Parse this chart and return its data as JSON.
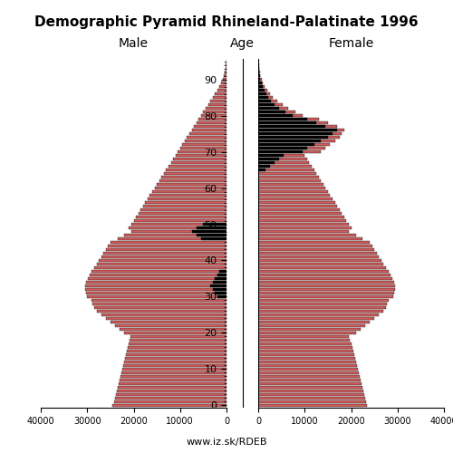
{
  "title": "Demographic Pyramid Rhineland-Palatinate 1996",
  "male_label": "Male",
  "female_label": "Female",
  "age_label": "Age",
  "url": "www.iz.sk/RDEB",
  "bar_color": "#cd5c5c",
  "black_color": "#000000",
  "xlim": 40000,
  "ages": [
    0,
    1,
    2,
    3,
    4,
    5,
    6,
    7,
    8,
    9,
    10,
    11,
    12,
    13,
    14,
    15,
    16,
    17,
    18,
    19,
    20,
    21,
    22,
    23,
    24,
    25,
    26,
    27,
    28,
    29,
    30,
    31,
    32,
    33,
    34,
    35,
    36,
    37,
    38,
    39,
    40,
    41,
    42,
    43,
    44,
    45,
    46,
    47,
    48,
    49,
    50,
    51,
    52,
    53,
    54,
    55,
    56,
    57,
    58,
    59,
    60,
    61,
    62,
    63,
    64,
    65,
    66,
    67,
    68,
    69,
    70,
    71,
    72,
    73,
    74,
    75,
    76,
    77,
    78,
    79,
    80,
    81,
    82,
    83,
    84,
    85,
    86,
    87,
    88,
    89,
    90,
    91,
    92,
    93,
    94,
    95
  ],
  "male": [
    24500,
    24200,
    24000,
    23800,
    23600,
    23400,
    23200,
    23000,
    22800,
    22600,
    22400,
    22200,
    22000,
    21800,
    21600,
    21400,
    21200,
    21000,
    20800,
    20600,
    22000,
    23000,
    24000,
    25000,
    26000,
    27000,
    28000,
    28500,
    28800,
    29000,
    30000,
    30200,
    30400,
    30500,
    30200,
    29800,
    29500,
    29000,
    28500,
    28000,
    27500,
    27000,
    26500,
    26000,
    25500,
    25000,
    23500,
    22000,
    20500,
    21000,
    20500,
    20000,
    19500,
    19000,
    18500,
    18000,
    17500,
    17000,
    16500,
    16000,
    15500,
    15000,
    14500,
    14000,
    13500,
    13000,
    12500,
    12000,
    11500,
    11000,
    10500,
    10000,
    9500,
    9000,
    8500,
    8000,
    7500,
    7000,
    6500,
    6000,
    5500,
    5000,
    4500,
    4000,
    3500,
    3000,
    2500,
    2000,
    1500,
    1100,
    750,
    500,
    350,
    230,
    150,
    80
  ],
  "female": [
    23500,
    23200,
    23000,
    22800,
    22600,
    22400,
    22200,
    22000,
    21800,
    21600,
    21400,
    21200,
    21000,
    20800,
    20600,
    20400,
    20200,
    20000,
    19800,
    19600,
    21000,
    22000,
    23000,
    24000,
    25000,
    26000,
    27000,
    27500,
    27800,
    28000,
    29000,
    29200,
    29400,
    29500,
    29200,
    28800,
    28500,
    28000,
    27500,
    27000,
    26500,
    26000,
    25500,
    25000,
    24500,
    24000,
    22500,
    21000,
    19500,
    20000,
    19500,
    19000,
    18500,
    18000,
    17500,
    17000,
    16500,
    16000,
    15500,
    15000,
    14500,
    14000,
    13500,
    13000,
    12500,
    12000,
    11500,
    11000,
    10500,
    10000,
    13500,
    14500,
    15500,
    16500,
    17500,
    18000,
    18500,
    17000,
    15000,
    13000,
    9500,
    8000,
    6500,
    5200,
    4100,
    3200,
    2500,
    1900,
    1400,
    1000,
    700,
    480,
    330,
    210,
    130,
    70
  ],
  "male_black": [
    0,
    0,
    0,
    0,
    0,
    0,
    0,
    0,
    0,
    0,
    0,
    0,
    0,
    0,
    0,
    0,
    0,
    0,
    0,
    0,
    0,
    0,
    0,
    0,
    0,
    0,
    0,
    0,
    0,
    0,
    2000,
    2500,
    3000,
    3500,
    3000,
    2500,
    2000,
    1500,
    0,
    0,
    0,
    0,
    0,
    0,
    0,
    0,
    5500,
    6500,
    7500,
    6500,
    5000,
    0,
    0,
    0,
    0,
    0,
    0,
    0,
    0,
    0,
    0,
    0,
    0,
    0,
    0,
    0,
    0,
    0,
    0,
    0,
    0,
    0,
    0,
    0,
    0,
    0,
    0,
    0,
    0,
    0,
    0,
    0,
    0,
    0,
    0,
    0,
    0,
    0,
    0,
    0,
    0,
    0,
    0,
    0,
    0,
    0
  ],
  "female_black": [
    0,
    0,
    0,
    0,
    0,
    0,
    0,
    0,
    0,
    0,
    0,
    0,
    0,
    0,
    0,
    0,
    0,
    0,
    0,
    0,
    0,
    0,
    0,
    0,
    0,
    0,
    0,
    0,
    0,
    0,
    0,
    0,
    0,
    0,
    0,
    0,
    0,
    0,
    0,
    0,
    0,
    0,
    0,
    0,
    0,
    0,
    0,
    0,
    0,
    0,
    0,
    0,
    0,
    0,
    0,
    0,
    0,
    0,
    0,
    0,
    0,
    0,
    0,
    0,
    0,
    1500,
    2500,
    3500,
    4500,
    5500,
    9500,
    10500,
    12000,
    13500,
    15000,
    16000,
    17000,
    14500,
    12500,
    10500,
    7500,
    5800,
    4500,
    3500,
    2800,
    2200,
    1700,
    1300,
    950,
    700,
    450,
    320,
    220,
    140,
    90,
    40
  ]
}
